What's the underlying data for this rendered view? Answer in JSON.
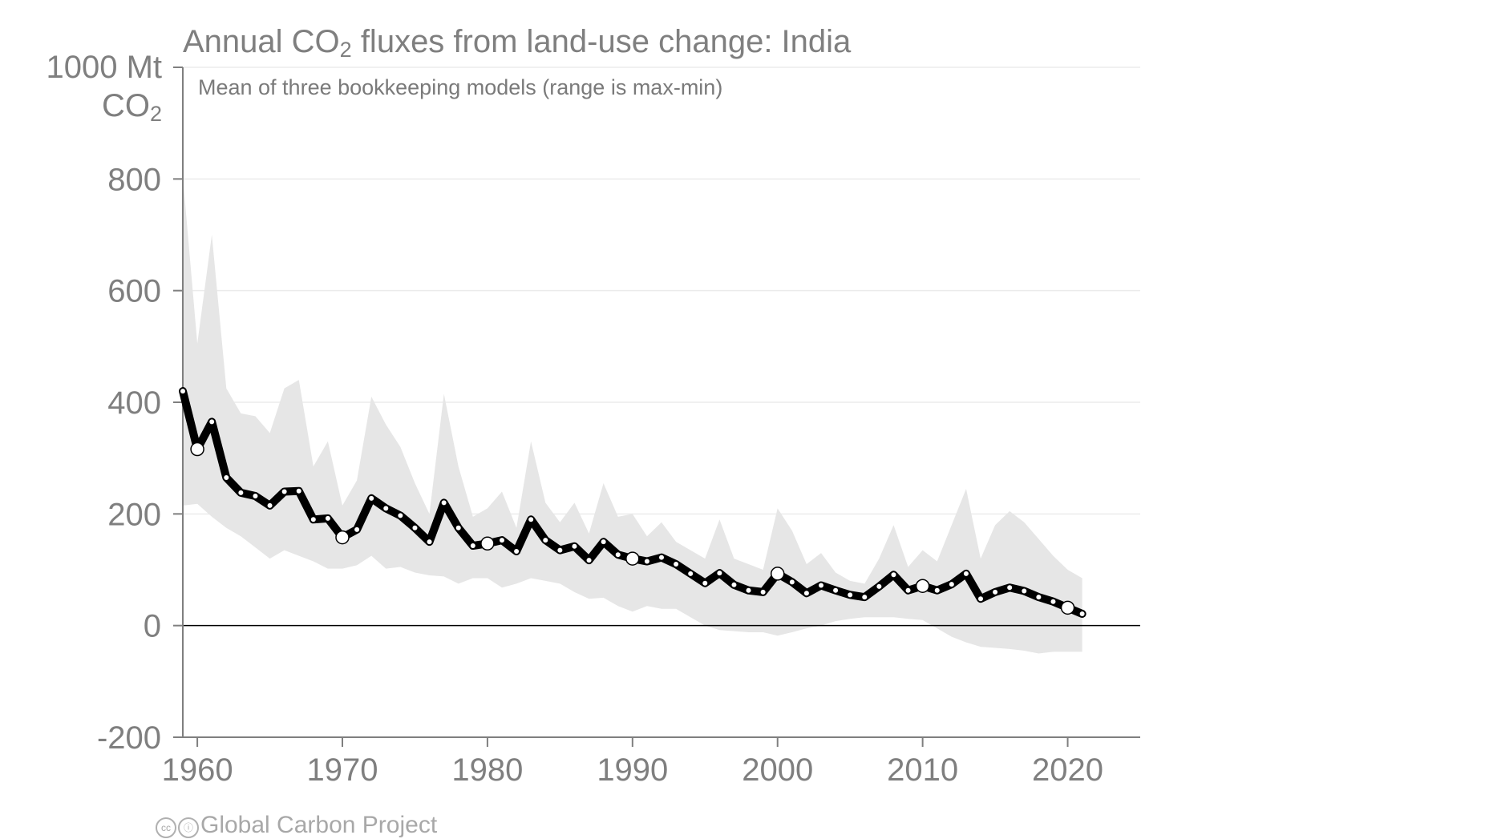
{
  "header": {
    "title_prefix": "Annual CO",
    "title_sub": "2",
    "title_suffix": " fluxes from land-use change: India",
    "subtitle": "Mean of three bookkeeping models (range is max-min)"
  },
  "y_unit": {
    "line1": "1000 Mt",
    "line2_prefix": "CO",
    "line2_sub": "2"
  },
  "footer": {
    "cc_icon": "cc-icon",
    "by_icon": "by-icon",
    "text": "Global Carbon Project"
  },
  "colors": {
    "line": "#000000",
    "band": "#e6e6e6",
    "axis": "#7f7f7f",
    "grid": "#ebebeb",
    "text": "#7f7f7f"
  },
  "chart_data": {
    "type": "line",
    "title": "Annual CO2 fluxes from land-use change: India",
    "subtitle": "Mean of three bookkeeping models (range is max-min)",
    "ylabel": "1000 Mt CO2",
    "xlim": [
      1959,
      2025
    ],
    "ylim": [
      -200,
      1000
    ],
    "x_ticks": [
      1960,
      1970,
      1980,
      1990,
      2000,
      2010,
      2020
    ],
    "y_ticks": [
      -200,
      0,
      200,
      400,
      600,
      800
    ],
    "y_tick_labels": [
      "-200",
      "0",
      "200",
      "400",
      "600",
      "800"
    ],
    "x_tick_labels": [
      "1960",
      "1970",
      "1980",
      "1990",
      "2000",
      "2010",
      "2020"
    ],
    "grid": true,
    "x": [
      1959,
      1960,
      1961,
      1962,
      1963,
      1964,
      1965,
      1966,
      1967,
      1968,
      1969,
      1970,
      1971,
      1972,
      1973,
      1974,
      1975,
      1976,
      1977,
      1978,
      1979,
      1980,
      1981,
      1982,
      1983,
      1984,
      1985,
      1986,
      1987,
      1988,
      1989,
      1990,
      1991,
      1992,
      1993,
      1994,
      1995,
      1996,
      1997,
      1998,
      1999,
      2000,
      2001,
      2002,
      2003,
      2004,
      2005,
      2006,
      2007,
      2008,
      2009,
      2010,
      2011,
      2012,
      2013,
      2014,
      2015,
      2016,
      2017,
      2018,
      2019,
      2020,
      2021
    ],
    "mean": [
      420,
      316,
      365,
      265,
      238,
      232,
      215,
      240,
      241,
      190,
      192,
      158,
      172,
      228,
      210,
      197,
      175,
      150,
      220,
      175,
      143,
      147,
      153,
      133,
      190,
      153,
      135,
      142,
      117,
      150,
      127,
      120,
      115,
      122,
      110,
      93,
      76,
      94,
      73,
      63,
      60,
      93,
      78,
      58,
      72,
      63,
      55,
      51,
      70,
      91,
      63,
      71,
      63,
      74,
      93,
      48,
      60,
      68,
      62,
      51,
      43,
      32,
      21
    ],
    "band_max": [
      805,
      505,
      700,
      425,
      380,
      375,
      345,
      425,
      440,
      285,
      330,
      215,
      260,
      410,
      360,
      320,
      255,
      200,
      415,
      285,
      195,
      210,
      240,
      175,
      330,
      220,
      185,
      220,
      165,
      255,
      195,
      200,
      160,
      185,
      150,
      135,
      120,
      190,
      120,
      110,
      100,
      210,
      170,
      110,
      130,
      95,
      80,
      75,
      120,
      180,
      105,
      135,
      115,
      180,
      245,
      120,
      180,
      205,
      185,
      155,
      125,
      100,
      85
    ],
    "band_min": [
      215,
      218,
      195,
      175,
      160,
      140,
      120,
      135,
      125,
      115,
      102,
      102,
      108,
      125,
      102,
      105,
      95,
      90,
      88,
      75,
      85,
      85,
      68,
      75,
      85,
      80,
      75,
      60,
      48,
      50,
      35,
      25,
      35,
      30,
      30,
      15,
      0,
      -8,
      -10,
      -12,
      -12,
      -18,
      -12,
      -5,
      0,
      8,
      12,
      15,
      15,
      15,
      12,
      10,
      -5,
      -20,
      -30,
      -38,
      -40,
      -42,
      -45,
      -50,
      -47,
      -47,
      -47
    ],
    "highlight_years": [
      1960,
      1970,
      1980,
      1990,
      2000,
      2010,
      2020
    ]
  }
}
